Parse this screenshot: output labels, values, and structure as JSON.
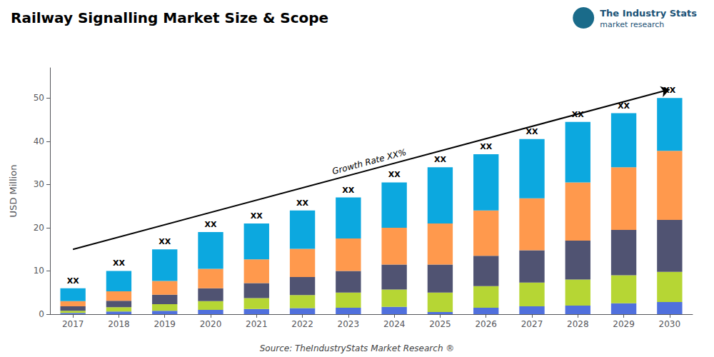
{
  "chart_data": {
    "type": "bar",
    "title": "Railway Signalling Market Size & Scope",
    "ylabel": "USD Million",
    "categories": [
      "2017",
      "2018",
      "2019",
      "2020",
      "2021",
      "2022",
      "2023",
      "2024",
      "2025",
      "2026",
      "2027",
      "2028",
      "2029",
      "2030"
    ],
    "stacked": true,
    "series": [
      {
        "values": [
          0.3,
          0.6,
          0.8,
          1.0,
          1.2,
          1.4,
          1.5,
          1.7,
          0.5,
          1.5,
          1.8,
          2.0,
          2.5,
          2.8
        ]
      },
      {
        "values": [
          0.5,
          1.0,
          1.5,
          2.0,
          2.5,
          3.0,
          3.5,
          4.0,
          4.5,
          5.0,
          5.5,
          6.0,
          6.5,
          7.0
        ]
      },
      {
        "values": [
          1.0,
          1.5,
          2.2,
          3.0,
          3.5,
          4.2,
          5.0,
          5.8,
          6.5,
          7.0,
          7.5,
          9.0,
          10.5,
          12.0
        ]
      },
      {
        "values": [
          1.2,
          2.2,
          3.2,
          4.5,
          5.5,
          6.5,
          7.5,
          8.5,
          9.5,
          10.5,
          12.0,
          13.5,
          14.5,
          16.0
        ]
      },
      {
        "values": [
          3.0,
          4.7,
          7.3,
          8.5,
          8.3,
          8.9,
          9.5,
          10.5,
          13.0,
          13.0,
          13.7,
          14.0,
          12.5,
          12.2
        ]
      }
    ],
    "ylim": [
      0,
      57
    ],
    "yticks": [
      0,
      10,
      20,
      30,
      40,
      50
    ],
    "grid": false,
    "annotations": [
      {
        "type": "stack_top_label",
        "text": "XX"
      },
      {
        "type": "arrow",
        "text": "Growth Rate XX%",
        "color": "#000000",
        "start": {
          "category": "2017",
          "y": 15
        },
        "end": {
          "category": "2030",
          "y": 52
        }
      },
      {
        "type": "note",
        "text": "Source: TheIndustryStats Market Research ®"
      },
      {
        "type": "logo",
        "text": "The Industry Stats",
        "subtext": "market research",
        "color": "#1a6b8a"
      }
    ]
  }
}
